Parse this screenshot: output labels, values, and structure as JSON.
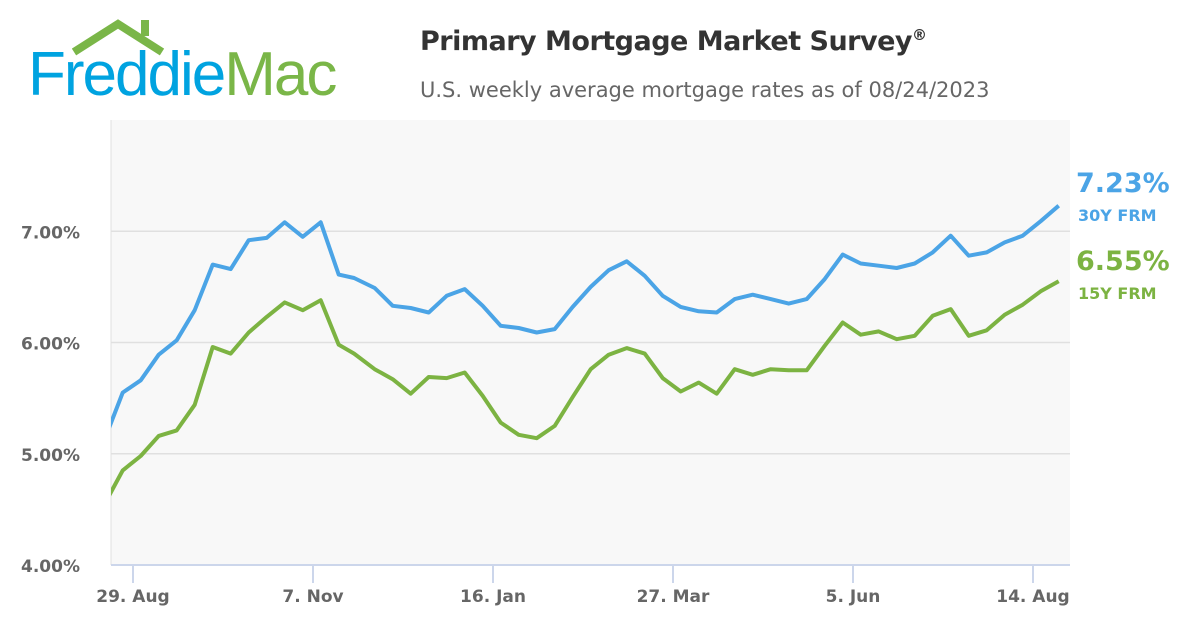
{
  "logo": {
    "text_part1": "Freddie",
    "text_part2": "Mac"
  },
  "header": {
    "title": "Primary Mortgage Market Survey",
    "title_mark": "®",
    "subtitle": "U.S. weekly average mortgage rates as of 08/24/2023"
  },
  "colors": {
    "frm30": "#4ba4e6",
    "frm15": "#7cb342",
    "plot_bg": "#f8f8f8",
    "grid": "#e0e0e0"
  },
  "chart_data": {
    "type": "line",
    "title": "Primary Mortgage Market Survey",
    "subtitle": "U.S. weekly average mortgage rates as of 08/24/2023",
    "ylim": [
      4,
      8
    ],
    "y_ticks": [
      "4.00%",
      "5.00%",
      "6.00%",
      "7.00%"
    ],
    "y_tick_values": [
      4,
      5,
      6,
      7
    ],
    "x_ticks": [
      "29. Aug",
      "7. Nov",
      "16. Jan",
      "27. Mar",
      "5. Jun",
      "14. Aug"
    ],
    "x_tick_dates": [
      "2022-08-29",
      "2022-11-07",
      "2023-01-16",
      "2023-03-27",
      "2023-06-05",
      "2023-08-14"
    ],
    "grid": true,
    "x": [
      "2022-08-18",
      "2022-08-25",
      "2022-09-01",
      "2022-09-08",
      "2022-09-15",
      "2022-09-22",
      "2022-09-29",
      "2022-10-06",
      "2022-10-13",
      "2022-10-20",
      "2022-10-27",
      "2022-11-03",
      "2022-11-10",
      "2022-11-17",
      "2022-11-23",
      "2022-12-01",
      "2022-12-08",
      "2022-12-15",
      "2022-12-22",
      "2022-12-29",
      "2023-01-05",
      "2023-01-12",
      "2023-01-19",
      "2023-01-26",
      "2023-02-02",
      "2023-02-09",
      "2023-02-16",
      "2023-02-23",
      "2023-03-02",
      "2023-03-09",
      "2023-03-16",
      "2023-03-23",
      "2023-03-30",
      "2023-04-06",
      "2023-04-13",
      "2023-04-20",
      "2023-04-27",
      "2023-05-04",
      "2023-05-11",
      "2023-05-18",
      "2023-05-25",
      "2023-06-01",
      "2023-06-08",
      "2023-06-15",
      "2023-06-22",
      "2023-06-29",
      "2023-07-06",
      "2023-07-13",
      "2023-07-20",
      "2023-07-27",
      "2023-08-03",
      "2023-08-10",
      "2023-08-17",
      "2023-08-24"
    ],
    "series": [
      {
        "name": "30Y FRM",
        "last_label": "7.23%",
        "values": [
          5.13,
          5.55,
          5.66,
          5.89,
          6.02,
          6.29,
          6.7,
          6.66,
          6.92,
          6.94,
          7.08,
          6.95,
          7.08,
          6.61,
          6.58,
          6.49,
          6.33,
          6.31,
          6.27,
          6.42,
          6.48,
          6.33,
          6.15,
          6.13,
          6.09,
          6.12,
          6.32,
          6.5,
          6.65,
          6.73,
          6.6,
          6.42,
          6.32,
          6.28,
          6.27,
          6.39,
          6.43,
          6.39,
          6.35,
          6.39,
          6.57,
          6.79,
          6.71,
          6.69,
          6.67,
          6.71,
          6.81,
          6.96,
          6.78,
          6.81,
          6.9,
          6.96,
          7.09,
          7.23
        ]
      },
      {
        "name": "15Y FRM",
        "last_label": "6.55%",
        "values": [
          4.55,
          4.85,
          4.98,
          5.16,
          5.21,
          5.44,
          5.96,
          5.9,
          6.09,
          6.23,
          6.36,
          6.29,
          6.38,
          5.98,
          5.9,
          5.76,
          5.67,
          5.54,
          5.69,
          5.68,
          5.73,
          5.52,
          5.28,
          5.17,
          5.14,
          5.25,
          5.51,
          5.76,
          5.89,
          5.95,
          5.9,
          5.68,
          5.56,
          5.64,
          5.54,
          5.76,
          5.71,
          5.76,
          5.75,
          5.75,
          5.97,
          6.18,
          6.07,
          6.1,
          6.03,
          6.06,
          6.24,
          6.3,
          6.06,
          6.11,
          6.25,
          6.34,
          6.46,
          6.55
        ]
      }
    ]
  }
}
